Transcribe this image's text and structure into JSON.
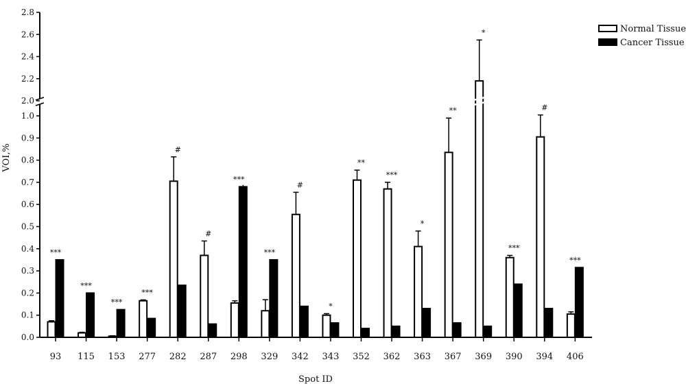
{
  "chart_data": {
    "type": "bar",
    "xlabel": "Spot ID",
    "ylabel": "VOI,%",
    "ylim": [
      0,
      2.8
    ],
    "axis_break": [
      1.0,
      2.0
    ],
    "yticks": [
      "0.0",
      "0.1",
      "0.2",
      "0.3",
      "0.4",
      "0.5",
      "0.6",
      "0.7",
      "0.8",
      "0.9",
      "1.0",
      "2.0",
      "2.2",
      "2.4",
      "2.6",
      "2.8"
    ],
    "legend_position": "top-right",
    "grid": false,
    "categories": [
      "93",
      "115",
      "153",
      "277",
      "282",
      "287",
      "298",
      "329",
      "342",
      "343",
      "352",
      "362",
      "363",
      "367",
      "369",
      "390",
      "394",
      "406"
    ],
    "significance": [
      "***",
      "***",
      "***",
      "***",
      "#",
      "#",
      "***",
      "***",
      "#",
      "*",
      "**",
      "***",
      "*",
      "**",
      "*",
      "***",
      "#",
      "***"
    ],
    "series": [
      {
        "name": "Normal Tissue",
        "color": "#ffffff",
        "values": [
          0.07,
          0.02,
          0.005,
          0.165,
          0.705,
          0.37,
          0.155,
          0.12,
          0.555,
          0.1,
          0.71,
          0.67,
          0.41,
          0.835,
          2.18,
          0.36,
          0.905,
          0.105
        ],
        "errors": [
          0.005,
          0.003,
          0.002,
          0.004,
          0.11,
          0.065,
          0.01,
          0.05,
          0.1,
          0.007,
          0.045,
          0.03,
          0.07,
          0.155,
          0.37,
          0.01,
          0.155,
          0.01
        ]
      },
      {
        "name": "Cancer Tissue",
        "color": "#000000",
        "values": [
          0.35,
          0.2,
          0.125,
          0.085,
          0.235,
          0.06,
          0.68,
          0.35,
          0.14,
          0.065,
          0.04,
          0.05,
          0.13,
          0.065,
          0.05,
          0.24,
          0.13,
          0.315
        ],
        "errors": [
          0,
          0,
          0,
          0,
          0,
          0,
          0.008,
          0,
          0,
          0,
          0,
          0,
          0,
          0,
          0,
          0,
          0,
          0
        ]
      }
    ]
  }
}
